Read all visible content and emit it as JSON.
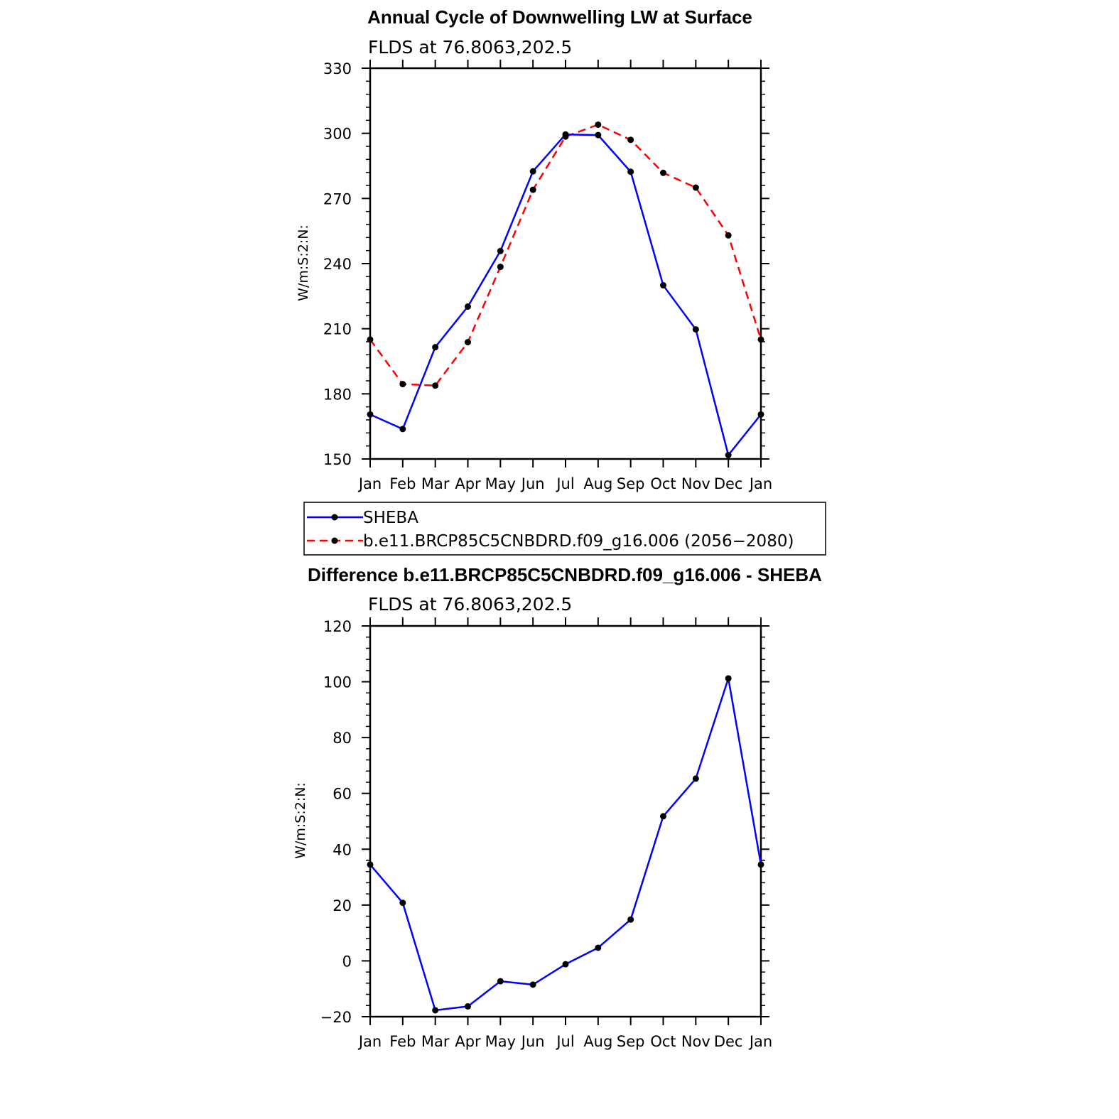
{
  "chart_data": [
    {
      "type": "line",
      "title": "Annual Cycle of Downwelling LW at Surface",
      "subtitle": "FLDS at 76.8063,202.5",
      "ylabel": "W/m:S:2:N:",
      "xlabel": "",
      "categories": [
        "Jan",
        "Feb",
        "Mar",
        "Apr",
        "May",
        "Jun",
        "Jul",
        "Aug",
        "Sep",
        "Oct",
        "Nov",
        "Dec",
        "Jan"
      ],
      "ylim": [
        150,
        330
      ],
      "yticks": [
        150,
        180,
        210,
        240,
        270,
        300,
        330
      ],
      "series": [
        {
          "name": "SHEBA",
          "color": "#0000ff",
          "dash": "solid",
          "values": [
            170.5,
            163.8,
            201.5,
            220.2,
            245.8,
            282.5,
            299.5,
            299.2,
            282.3,
            230.0,
            209.7,
            151.8,
            170.5
          ]
        },
        {
          "name": "b.e11.BRCP85C5CNBDRD.f09_g16.006 (2056−2080)",
          "color": "#ff0000",
          "dash": "dashed",
          "values": [
            205.0,
            184.5,
            183.8,
            203.8,
            238.5,
            274.0,
            298.5,
            304.0,
            297.0,
            281.8,
            275.0,
            253.0,
            205.0
          ]
        }
      ],
      "legend": "below"
    },
    {
      "type": "line",
      "title": "Difference b.e11.BRCP85C5CNBDRD.f09_g16.006 - SHEBA",
      "subtitle": "FLDS at 76.8063,202.5",
      "ylabel": "W/m:S:2:N:",
      "xlabel": "",
      "categories": [
        "Jan",
        "Feb",
        "Mar",
        "Apr",
        "May",
        "Jun",
        "Jul",
        "Aug",
        "Sep",
        "Oct",
        "Nov",
        "Dec",
        "Jan"
      ],
      "ylim": [
        -20,
        120
      ],
      "yticks": [
        -20,
        0,
        20,
        40,
        60,
        80,
        100,
        120
      ],
      "ytick_labels": [
        "−20",
        "0",
        "20",
        "40",
        "60",
        "80",
        "100",
        "120"
      ],
      "series": [
        {
          "color": "#0000ff",
          "dash": "solid",
          "values": [
            34.5,
            20.8,
            -17.7,
            -16.3,
            -7.3,
            -8.5,
            -1.2,
            4.7,
            14.8,
            51.8,
            65.3,
            101.2,
            34.5
          ]
        }
      ]
    }
  ]
}
